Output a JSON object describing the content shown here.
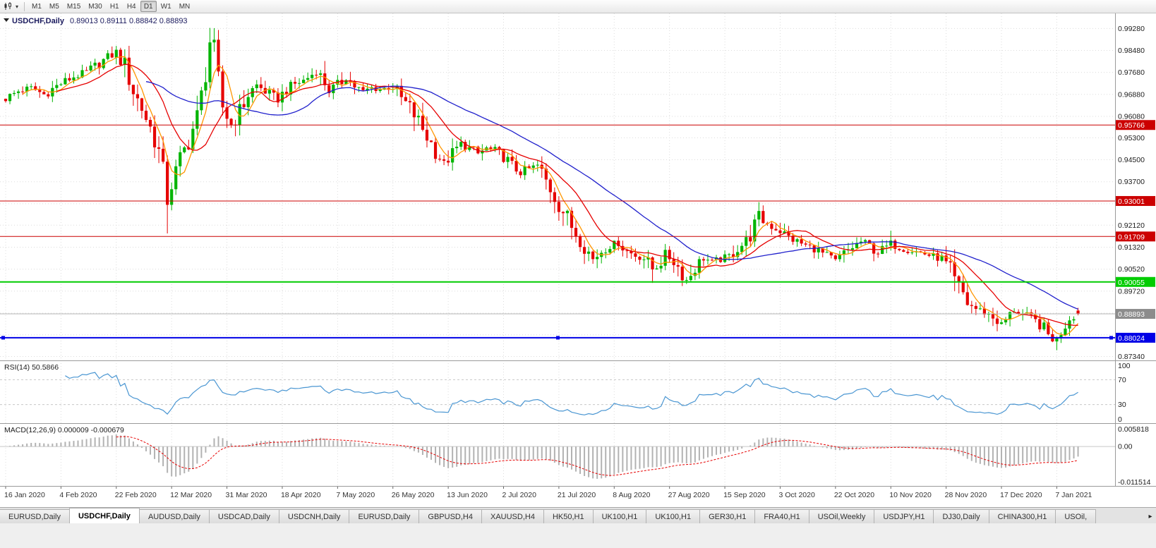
{
  "toolbar": {
    "chart_type_icon": "candlestick-chart-icon",
    "caret_icon": "▾",
    "timeframes": [
      "M1",
      "M5",
      "M15",
      "M30",
      "H1",
      "H4",
      "D1",
      "W1",
      "MN"
    ],
    "active_timeframe": "D1"
  },
  "chart_data": {
    "type": "candlestick",
    "symbol": "USDCHF",
    "timeframe": "Daily",
    "title_text": "USDCHF,Daily",
    "ohlc": {
      "open": "0.89013",
      "high": "0.89111",
      "low": "0.88842",
      "close": "0.88893"
    },
    "title_color": "#1b1b5e",
    "bull_color": "#00b400",
    "bear_color": "#e60000",
    "grid_color": "#dcdcdc",
    "price_min": 0.872,
    "price_max": 0.9975,
    "candle_count": 253,
    "candles_per_label": 13,
    "price_axis": {
      "labels": [
        "0.99280",
        "0.98480",
        "0.97680",
        "0.96880",
        "0.96080",
        "0.95300",
        "0.94500",
        "0.93700",
        "0.92120",
        "0.91320",
        "0.90520",
        "0.89720",
        "0.87340"
      ],
      "values": [
        0.9928,
        0.9848,
        0.9768,
        0.9688,
        0.9608,
        0.953,
        0.945,
        0.937,
        0.9212,
        0.9132,
        0.9052,
        0.8972,
        0.8734
      ]
    },
    "gridline_prices": [
      0.9928,
      0.9848,
      0.9768,
      0.9688,
      0.9608,
      0.953,
      0.945,
      0.937,
      0.929,
      0.9212,
      0.9132,
      0.9052,
      0.8972,
      0.8892,
      0.8813,
      0.8734
    ],
    "horizontal_levels": [
      {
        "price": 0.95766,
        "label": "0.95766",
        "color": "#cc0000",
        "width": 1,
        "selected": false
      },
      {
        "price": 0.93001,
        "label": "0.93001",
        "color": "#cc0000",
        "width": 1,
        "selected": false
      },
      {
        "price": 0.91709,
        "label": "0.91709",
        "color": "#cc0000",
        "width": 1,
        "selected": false
      },
      {
        "price": 0.90055,
        "label": "0.90055",
        "color": "#00cc00",
        "width": 2,
        "selected": false
      },
      {
        "price": 0.88024,
        "label": "0.88024",
        "color": "#0000e6",
        "width": 2,
        "selected": true
      }
    ],
    "last_price": {
      "value": 0.88893,
      "label": "0.88893",
      "badge_color": "#8c8c8c",
      "line_color": "#b4b4b4"
    },
    "moving_averages": [
      {
        "period": 5,
        "color": "#ff9600"
      },
      {
        "period": 13,
        "color": "#e60000"
      },
      {
        "period": 34,
        "color": "#2020cc"
      }
    ],
    "price_path_anchors": [
      [
        0,
        0.9672
      ],
      [
        3,
        0.97
      ],
      [
        6,
        0.9712
      ],
      [
        9,
        0.9688
      ],
      [
        13,
        0.9728
      ],
      [
        16,
        0.9752
      ],
      [
        19,
        0.9768
      ],
      [
        23,
        0.9812
      ],
      [
        26,
        0.9842
      ],
      [
        28,
        0.9792
      ],
      [
        30,
        0.97
      ],
      [
        32,
        0.9638
      ],
      [
        34,
        0.9566
      ],
      [
        36,
        0.948
      ],
      [
        37,
        0.941
      ],
      [
        38,
        0.9302
      ],
      [
        39,
        0.936
      ],
      [
        41,
        0.9452
      ],
      [
        43,
        0.9518
      ],
      [
        45,
        0.9608
      ],
      [
        47,
        0.9762
      ],
      [
        48,
        0.9882
      ],
      [
        49,
        0.9852
      ],
      [
        50,
        0.9742
      ],
      [
        51,
        0.9642
      ],
      [
        53,
        0.9578
      ],
      [
        55,
        0.9625
      ],
      [
        57,
        0.9688
      ],
      [
        59,
        0.9722
      ],
      [
        62,
        0.9688
      ],
      [
        64,
        0.9668
      ],
      [
        66,
        0.9706
      ],
      [
        68,
        0.9726
      ],
      [
        70,
        0.9738
      ],
      [
        73,
        0.9772
      ],
      [
        75,
        0.9732
      ],
      [
        76,
        0.9702
      ],
      [
        78,
        0.9722
      ],
      [
        80,
        0.9748
      ],
      [
        82,
        0.9718
      ],
      [
        84,
        0.9698
      ],
      [
        86,
        0.9712
      ],
      [
        88,
        0.9706
      ],
      [
        91,
        0.9716
      ],
      [
        93,
        0.9672
      ],
      [
        95,
        0.964
      ],
      [
        98,
        0.9562
      ],
      [
        101,
        0.9482
      ],
      [
        103,
        0.9438
      ],
      [
        105,
        0.9472
      ],
      [
        107,
        0.9508
      ],
      [
        109,
        0.9492
      ],
      [
        111,
        0.9472
      ],
      [
        113,
        0.9492
      ],
      [
        115,
        0.9482
      ],
      [
        117,
        0.9462
      ],
      [
        119,
        0.9428
      ],
      [
        121,
        0.9402
      ],
      [
        123,
        0.9418
      ],
      [
        125,
        0.9428
      ],
      [
        127,
        0.9372
      ],
      [
        129,
        0.9318
      ],
      [
        130,
        0.9288
      ],
      [
        132,
        0.9238
      ],
      [
        133,
        0.9208
      ],
      [
        135,
        0.9162
      ],
      [
        136,
        0.9138
      ],
      [
        138,
        0.9088
      ],
      [
        140,
        0.9118
      ],
      [
        142,
        0.9138
      ],
      [
        144,
        0.9148
      ],
      [
        146,
        0.9118
      ],
      [
        148,
        0.9102
      ],
      [
        150,
        0.9092
      ],
      [
        152,
        0.9052
      ],
      [
        154,
        0.9082
      ],
      [
        155,
        0.9108
      ],
      [
        157,
        0.9082
      ],
      [
        159,
        0.9038
      ],
      [
        160,
        0.9012
      ],
      [
        162,
        0.9058
      ],
      [
        164,
        0.9092
      ],
      [
        166,
        0.9078
      ],
      [
        168,
        0.9088
      ],
      [
        170,
        0.9098
      ],
      [
        172,
        0.9128
      ],
      [
        174,
        0.9152
      ],
      [
        176,
        0.9208
      ],
      [
        177,
        0.9248
      ],
      [
        178,
        0.9228
      ],
      [
        180,
        0.9208
      ],
      [
        182,
        0.9192
      ],
      [
        184,
        0.9168
      ],
      [
        186,
        0.9152
      ],
      [
        188,
        0.9138
      ],
      [
        190,
        0.9128
      ],
      [
        192,
        0.9108
      ],
      [
        195,
        0.9082
      ],
      [
        197,
        0.9108
      ],
      [
        199,
        0.9132
      ],
      [
        201,
        0.9152
      ],
      [
        203,
        0.9138
      ],
      [
        205,
        0.9112
      ],
      [
        207,
        0.9132
      ],
      [
        208,
        0.9146
      ],
      [
        210,
        0.9132
      ],
      [
        212,
        0.9122
      ],
      [
        214,
        0.9116
      ],
      [
        216,
        0.9108
      ],
      [
        218,
        0.9098
      ],
      [
        220,
        0.9088
      ],
      [
        222,
        0.9042
      ],
      [
        223,
        0.9006
      ],
      [
        225,
        0.8962
      ],
      [
        226,
        0.8928
      ],
      [
        228,
        0.8908
      ],
      [
        230,
        0.8896
      ],
      [
        232,
        0.8876
      ],
      [
        234,
        0.8852
      ],
      [
        236,
        0.8882
      ],
      [
        237,
        0.8904
      ],
      [
        239,
        0.8888
      ],
      [
        241,
        0.8872
      ],
      [
        243,
        0.8852
      ],
      [
        245,
        0.8812
      ],
      [
        247,
        0.879
      ],
      [
        248,
        0.8832
      ],
      [
        250,
        0.8876
      ],
      [
        252,
        0.8889
      ]
    ],
    "wick_overrides": {
      "38": {
        "low": 0.9182
      },
      "48": {
        "high": 0.993
      },
      "152": {
        "low": 0.9002
      },
      "160": {
        "low": 0.8998
      },
      "177": {
        "high": 0.9296
      },
      "208": {
        "high": 0.9192
      },
      "247": {
        "low": 0.8757
      }
    },
    "x_axis_dates": [
      "16 Jan 2020",
      "4 Feb 2020",
      "22 Feb 2020",
      "12 Mar 2020",
      "31 Mar 2020",
      "18 Apr 2020",
      "7 May 2020",
      "26 May 2020",
      "13 Jun 2020",
      "2 Jul 2020",
      "21 Jul 2020",
      "8 Aug 2020",
      "27 Aug 2020",
      "15 Sep 2020",
      "3 Oct 2020",
      "22 Oct 2020",
      "10 Nov 2020",
      "28 Nov 2020",
      "17 Dec 2020",
      "7 Jan 2021"
    ],
    "indicators": {
      "rsi": {
        "label": "RSI(14)",
        "value": "50.5866",
        "period": 14,
        "color": "#4a96d2",
        "levels": [
          70,
          30
        ],
        "axis_labels": [
          "100",
          "70",
          "30",
          "0"
        ],
        "axis_values": [
          100,
          70,
          30,
          0
        ]
      },
      "macd": {
        "label": "MACD(12,26,9)",
        "value_main": "0.000009",
        "value_signal": "-0.000679",
        "fast": 12,
        "slow": 26,
        "signal": 9,
        "hist_color": "#b2b2b2",
        "signal_color": "#e60000",
        "axis_labels": [
          "0.005818",
          "0.00",
          "-0.011514"
        ],
        "axis_max": 0.005818,
        "axis_min": -0.011514
      }
    }
  },
  "tabs": {
    "scroll_right_icon": "▸",
    "items": [
      {
        "label": "EURUSD,Daily",
        "active": false
      },
      {
        "label": "USDCHF,Daily",
        "active": true
      },
      {
        "label": "AUDUSD,Daily",
        "active": false
      },
      {
        "label": "USDCAD,Daily",
        "active": false
      },
      {
        "label": "USDCNH,Daily",
        "active": false
      },
      {
        "label": "EURUSD,Daily",
        "active": false
      },
      {
        "label": "GBPUSD,H4",
        "active": false
      },
      {
        "label": "XAUUSD,H4",
        "active": false
      },
      {
        "label": "HK50,H1",
        "active": false
      },
      {
        "label": "UK100,H1",
        "active": false
      },
      {
        "label": "UK100,H1",
        "active": false
      },
      {
        "label": "GER30,H1",
        "active": false
      },
      {
        "label": "FRA40,H1",
        "active": false
      },
      {
        "label": "USOil,Weekly",
        "active": false
      },
      {
        "label": "USDJPY,H1",
        "active": false
      },
      {
        "label": "DJ30,Daily",
        "active": false
      },
      {
        "label": "CHINA300,H1",
        "active": false
      },
      {
        "label": "USOil,",
        "active": false
      }
    ]
  }
}
